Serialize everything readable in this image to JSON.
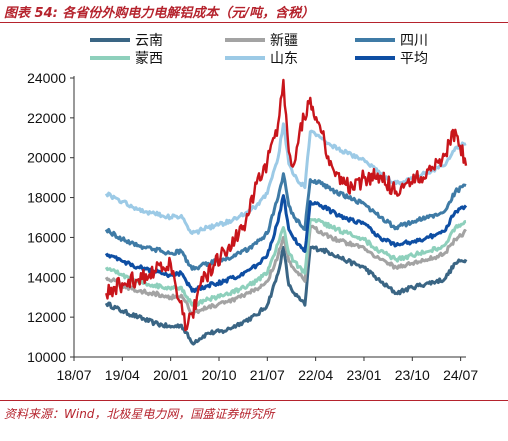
{
  "figure": {
    "title": "图表 54:  各省份外购电力电解铝成本（元/吨，含税）",
    "source": "资料来源：Wind，北极星电力网，国盛证券研究所"
  },
  "colors": {
    "云南": "#3a6584",
    "新疆": "#a3a3a3",
    "四川": "#3f7ba6",
    "蒙西": "#8ed0bc",
    "山东": "#9ccae6",
    "平均": "#0e4ea3",
    "title_red": "#b5232d",
    "outlier_red": "#c8151b"
  },
  "chart_data": {
    "type": "line",
    "x_axis": {
      "type": "date",
      "range": [
        "2018-07",
        "2024-08"
      ],
      "tick_labels": [
        "18/07",
        "19/04",
        "20/01",
        "20/10",
        "21/07",
        "22/04",
        "23/01",
        "23/10",
        "24/07"
      ]
    },
    "y_axis": {
      "range": [
        10000,
        24000
      ],
      "ticks": [
        10000,
        12000,
        14000,
        16000,
        18000,
        20000,
        22000,
        24000
      ]
    },
    "grid": false,
    "legend": "top, 3 columns",
    "series": [
      {
        "name": "云南",
        "points": [
          [
            "2019-01",
            12700
          ],
          [
            "2019-04",
            12300
          ],
          [
            "2019-07",
            12000
          ],
          [
            "2019-10",
            11700
          ],
          [
            "2020-01",
            11500
          ],
          [
            "2020-03",
            11600
          ],
          [
            "2020-05",
            10700
          ],
          [
            "2020-08",
            11200
          ],
          [
            "2020-11",
            11300
          ],
          [
            "2021-02",
            11700
          ],
          [
            "2021-05",
            12100
          ],
          [
            "2021-07",
            12600
          ],
          [
            "2021-09",
            14200
          ],
          [
            "2021-10",
            15500
          ],
          [
            "2021-11",
            13600
          ],
          [
            "2021-12",
            13200
          ],
          [
            "2022-02",
            12600
          ],
          [
            "2022-03",
            15500
          ],
          [
            "2022-05",
            15400
          ],
          [
            "2022-07",
            15200
          ],
          [
            "2022-10",
            14800
          ],
          [
            "2023-01",
            14500
          ],
          [
            "2023-04",
            13800
          ],
          [
            "2023-07",
            13200
          ],
          [
            "2023-10",
            13500
          ],
          [
            "2024-01",
            13700
          ],
          [
            "2024-04",
            13900
          ],
          [
            "2024-06",
            14700
          ],
          [
            "2024-08",
            14900
          ]
        ]
      },
      {
        "name": "新疆",
        "points": [
          [
            "2019-01",
            14000
          ],
          [
            "2019-04",
            13600
          ],
          [
            "2019-07",
            13300
          ],
          [
            "2019-10",
            13200
          ],
          [
            "2020-01",
            13000
          ],
          [
            "2020-03",
            13100
          ],
          [
            "2020-05",
            12200
          ],
          [
            "2020-08",
            12500
          ],
          [
            "2020-11",
            12700
          ],
          [
            "2021-02",
            13000
          ],
          [
            "2021-05",
            13400
          ],
          [
            "2021-07",
            13800
          ],
          [
            "2021-09",
            15100
          ],
          [
            "2021-10",
            16000
          ],
          [
            "2021-11",
            14800
          ],
          [
            "2021-12",
            14400
          ],
          [
            "2022-02",
            13800
          ],
          [
            "2022-03",
            16500
          ],
          [
            "2022-05",
            16300
          ],
          [
            "2022-07",
            16000
          ],
          [
            "2022-10",
            15700
          ],
          [
            "2023-01",
            15500
          ],
          [
            "2023-04",
            14900
          ],
          [
            "2023-07",
            14500
          ],
          [
            "2023-10",
            14700
          ],
          [
            "2024-01",
            14900
          ],
          [
            "2024-04",
            15200
          ],
          [
            "2024-06",
            15900
          ],
          [
            "2024-08",
            16300
          ]
        ]
      },
      {
        "name": "四川",
        "points": [
          [
            "2019-01",
            16400
          ],
          [
            "2019-04",
            15900
          ],
          [
            "2019-07",
            15600
          ],
          [
            "2019-10",
            15400
          ],
          [
            "2020-01",
            15200
          ],
          [
            "2020-03",
            15300
          ],
          [
            "2020-05",
            14400
          ],
          [
            "2020-08",
            14700
          ],
          [
            "2020-11",
            14900
          ],
          [
            "2021-02",
            15200
          ],
          [
            "2021-05",
            15700
          ],
          [
            "2021-07",
            16200
          ],
          [
            "2021-09",
            18000
          ],
          [
            "2021-10",
            19200
          ],
          [
            "2021-11",
            17600
          ],
          [
            "2021-12",
            17000
          ],
          [
            "2022-02",
            16400
          ],
          [
            "2022-03",
            18900
          ],
          [
            "2022-05",
            18700
          ],
          [
            "2022-07",
            18400
          ],
          [
            "2022-10",
            18000
          ],
          [
            "2023-01",
            17700
          ],
          [
            "2023-04",
            17000
          ],
          [
            "2023-07",
            16500
          ],
          [
            "2023-10",
            16800
          ],
          [
            "2024-01",
            17000
          ],
          [
            "2024-04",
            17300
          ],
          [
            "2024-06",
            18300
          ],
          [
            "2024-08",
            18600
          ]
        ]
      },
      {
        "name": "蒙西",
        "points": [
          [
            "2019-01",
            14500
          ],
          [
            "2019-04",
            14100
          ],
          [
            "2019-07",
            13800
          ],
          [
            "2019-10",
            13600
          ],
          [
            "2020-01",
            13400
          ],
          [
            "2020-03",
            13500
          ],
          [
            "2020-05",
            12600
          ],
          [
            "2020-08",
            12900
          ],
          [
            "2020-11",
            13100
          ],
          [
            "2021-02",
            13400
          ],
          [
            "2021-05",
            13800
          ],
          [
            "2021-07",
            14200
          ],
          [
            "2021-09",
            15700
          ],
          [
            "2021-10",
            16500
          ],
          [
            "2021-11",
            15200
          ],
          [
            "2021-12",
            14800
          ],
          [
            "2022-02",
            14200
          ],
          [
            "2022-03",
            16900
          ],
          [
            "2022-05",
            16800
          ],
          [
            "2022-07",
            16500
          ],
          [
            "2022-10",
            16200
          ],
          [
            "2023-01",
            15900
          ],
          [
            "2023-04",
            15300
          ],
          [
            "2023-07",
            14900
          ],
          [
            "2023-10",
            15100
          ],
          [
            "2024-01",
            15300
          ],
          [
            "2024-04",
            15600
          ],
          [
            "2024-06",
            16500
          ],
          [
            "2024-08",
            16800
          ]
        ]
      },
      {
        "name": "山东",
        "points": [
          [
            "2019-01",
            18200
          ],
          [
            "2019-04",
            17800
          ],
          [
            "2019-07",
            17400
          ],
          [
            "2019-10",
            17200
          ],
          [
            "2020-01",
            17000
          ],
          [
            "2020-03",
            17100
          ],
          [
            "2020-05",
            16200
          ],
          [
            "2020-08",
            16500
          ],
          [
            "2020-11",
            16700
          ],
          [
            "2021-02",
            17100
          ],
          [
            "2021-05",
            17600
          ],
          [
            "2021-07",
            18200
          ],
          [
            "2021-09",
            20000
          ],
          [
            "2021-10",
            21700
          ],
          [
            "2021-11",
            19700
          ],
          [
            "2021-12",
            19100
          ],
          [
            "2022-02",
            18500
          ],
          [
            "2022-03",
            21300
          ],
          [
            "2022-05",
            21000
          ],
          [
            "2022-07",
            20600
          ],
          [
            "2022-10",
            20200
          ],
          [
            "2023-01",
            19900
          ],
          [
            "2023-04",
            19200
          ],
          [
            "2023-07",
            18700
          ],
          [
            "2023-10",
            19000
          ],
          [
            "2024-01",
            19300
          ],
          [
            "2024-04",
            19600
          ],
          [
            "2024-06",
            20500
          ],
          [
            "2024-08",
            20700
          ]
        ]
      },
      {
        "name": "平均",
        "points": [
          [
            "2019-01",
            15200
          ],
          [
            "2019-04",
            14800
          ],
          [
            "2019-07",
            14500
          ],
          [
            "2019-10",
            14300
          ],
          [
            "2020-01",
            14100
          ],
          [
            "2020-03",
            14200
          ],
          [
            "2020-05",
            13300
          ],
          [
            "2020-08",
            13600
          ],
          [
            "2020-11",
            13800
          ],
          [
            "2021-02",
            14100
          ],
          [
            "2021-05",
            14600
          ],
          [
            "2021-07",
            15100
          ],
          [
            "2021-09",
            16800
          ],
          [
            "2021-10",
            18100
          ],
          [
            "2021-11",
            16400
          ],
          [
            "2021-12",
            15900
          ],
          [
            "2022-02",
            15300
          ],
          [
            "2022-03",
            17800
          ],
          [
            "2022-05",
            17600
          ],
          [
            "2022-07",
            17300
          ],
          [
            "2022-10",
            16900
          ],
          [
            "2023-01",
            16700
          ],
          [
            "2023-04",
            16000
          ],
          [
            "2023-07",
            15600
          ],
          [
            "2023-10",
            15800
          ],
          [
            "2024-01",
            16000
          ],
          [
            "2024-04",
            16300
          ],
          [
            "2024-06",
            17300
          ],
          [
            "2024-08",
            17600
          ]
        ]
      },
      {
        "points": [
          [
            "2019-01",
            13200
          ],
          [
            "2019-04",
            13700
          ],
          [
            "2019-07",
            13900
          ],
          [
            "2019-10",
            14300
          ],
          [
            "2020-01",
            14700
          ],
          [
            "2020-02",
            13500
          ],
          [
            "2020-03",
            12800
          ],
          [
            "2020-04",
            11400
          ],
          [
            "2020-05",
            12200
          ],
          [
            "2020-07",
            13800
          ],
          [
            "2020-09",
            14600
          ],
          [
            "2020-11",
            15300
          ],
          [
            "2021-01",
            15900
          ],
          [
            "2021-03",
            16800
          ],
          [
            "2021-05",
            18700
          ],
          [
            "2021-07",
            19800
          ],
          [
            "2021-09",
            21700
          ],
          [
            "2021-10",
            23900
          ],
          [
            "2021-11",
            20300
          ],
          [
            "2021-12",
            19700
          ],
          [
            "2022-01",
            21300
          ],
          [
            "2022-03",
            23000
          ],
          [
            "2022-05",
            21300
          ],
          [
            "2022-07",
            19600
          ],
          [
            "2022-09",
            18700
          ],
          [
            "2022-11",
            18400
          ],
          [
            "2023-01",
            19000
          ],
          [
            "2023-04",
            19100
          ],
          [
            "2023-07",
            18300
          ],
          [
            "2023-10",
            18700
          ],
          [
            "2024-01",
            19400
          ],
          [
            "2024-04",
            20100
          ],
          [
            "2024-06",
            21400
          ],
          [
            "2024-08",
            19600
          ]
        ]
      }
    ]
  }
}
